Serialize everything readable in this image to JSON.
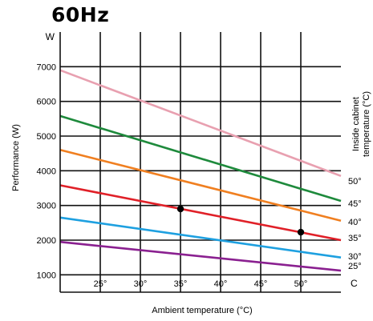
{
  "chart_data": {
    "type": "line",
    "title": "60Hz",
    "xlabel": "Ambient temperature (°C)",
    "ylabel": "Performance (W)",
    "right_label_line1": "Inside cabinet",
    "right_label_line2": "temperature (°C)",
    "y_unit_label": "W",
    "x_unit_label": "C",
    "xlim": [
      20,
      55
    ],
    "ylim": [
      500,
      8000
    ],
    "x_ticks": [
      25,
      30,
      35,
      40,
      45,
      50
    ],
    "x_tick_labels": [
      "25°",
      "30°",
      "35°",
      "40°",
      "45°",
      "50°"
    ],
    "y_ticks": [
      1000,
      2000,
      3000,
      4000,
      5000,
      6000,
      7000
    ],
    "y_tick_labels": [
      "1000",
      "2000",
      "3000",
      "4000",
      "5000",
      "6000",
      "7000"
    ],
    "grid": true,
    "series": [
      {
        "name": "50°",
        "color": "#e8a0b0",
        "x": [
          20,
          55
        ],
        "y": [
          6900,
          3850
        ]
      },
      {
        "name": "45°",
        "color": "#1e8a3c",
        "x": [
          20,
          55
        ],
        "y": [
          5580,
          3130
        ]
      },
      {
        "name": "40°",
        "color": "#f07f20",
        "x": [
          20,
          55
        ],
        "y": [
          4600,
          2560
        ]
      },
      {
        "name": "35°",
        "color": "#e02028",
        "x": [
          20,
          55
        ],
        "y": [
          3580,
          2000
        ]
      },
      {
        "name": "30°",
        "color": "#1ea0e0",
        "x": [
          20,
          55
        ],
        "y": [
          2650,
          1500
        ]
      },
      {
        "name": "25°",
        "color": "#8a2090",
        "x": [
          20,
          55
        ],
        "y": [
          1950,
          1120
        ]
      }
    ],
    "points": [
      {
        "x": 35,
        "y": 2900
      },
      {
        "x": 50,
        "y": 2230
      }
    ]
  }
}
